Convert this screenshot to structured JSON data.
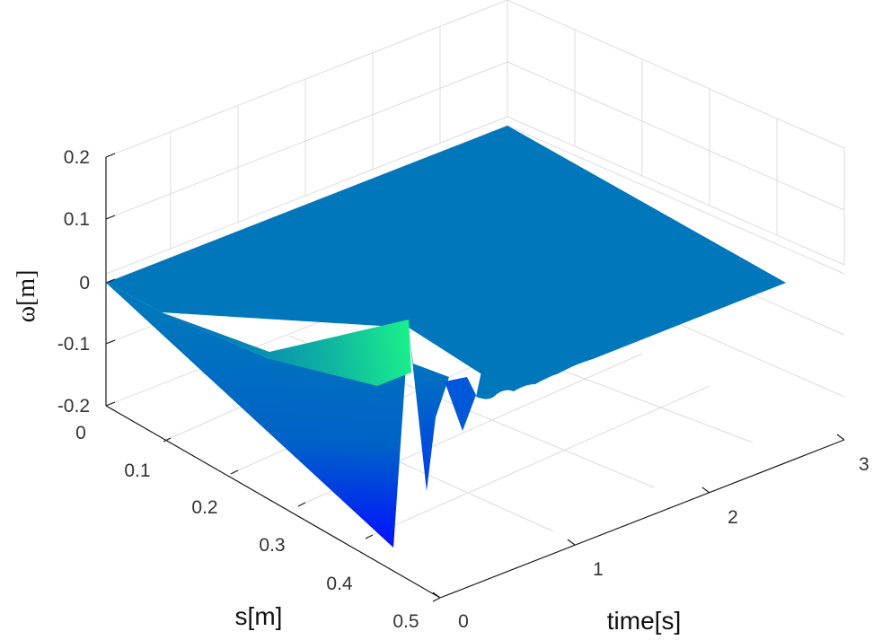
{
  "chart_data": {
    "type": "surface",
    "zlabel": "ω[m]",
    "xlabel": "time[s]",
    "ylabel": "s[m]",
    "x_ticks": [
      "0",
      "1",
      "2",
      "3"
    ],
    "y_ticks": [
      "0",
      "0.1",
      "0.2",
      "0.3",
      "0.4",
      "0.5"
    ],
    "z_ticks": [
      "0.2",
      "0.1",
      "0",
      "-0.1",
      "-0.2"
    ],
    "xlim": [
      0,
      3
    ],
    "ylim": [
      0,
      0.5
    ],
    "zlim": [
      -0.2,
      0.2
    ],
    "grid": true,
    "colormap": [
      "#0000ff",
      "#0077bb",
      "#00ff7f"
    ],
    "surface": {
      "time": [
        0,
        0.25,
        0.5,
        0.75,
        1.0,
        1.5,
        2.0,
        2.5,
        3.0
      ],
      "s": [
        0,
        0.1,
        0.2,
        0.3,
        0.4,
        0.5
      ],
      "omega_min": [
        0,
        -0.2,
        -0.12,
        -0.09,
        -0.05,
        -0.02,
        -0.01,
        -0.005,
        0
      ]
    }
  }
}
